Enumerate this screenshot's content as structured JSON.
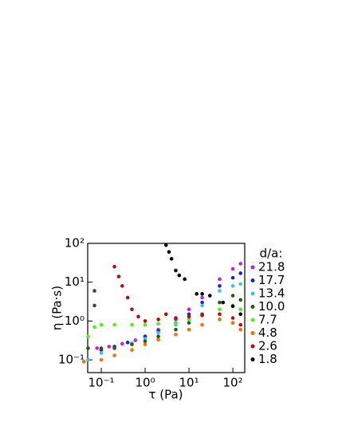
{
  "chart_data": {
    "type": "scatter",
    "x_label": "τ (Pa)",
    "y_label": "η (Pa·s)",
    "xscale": "log",
    "yscale": "log",
    "grid": false,
    "xlim": [
      0.049,
      187
    ],
    "ylim": [
      0.047,
      100
    ],
    "xticks": [
      {
        "value": 0.1,
        "label": "10⁻¹"
      },
      {
        "value": 1,
        "label": "10⁰"
      },
      {
        "value": 10,
        "label": "10¹"
      },
      {
        "value": 100,
        "label": "10²"
      }
    ],
    "yticks": [
      {
        "value": 0.1,
        "label": "10⁻¹"
      },
      {
        "value": 1,
        "label": "10⁰"
      },
      {
        "value": 10,
        "label": "10¹"
      },
      {
        "value": 100,
        "label": "10²"
      }
    ],
    "legend_title": "d/a:",
    "legend_position": "right",
    "series": [
      {
        "name": "21.8",
        "color": "#c020e0",
        "x": [
          0.05,
          0.08,
          0.15,
          0.3,
          0.6,
          1,
          2,
          5,
          10,
          20,
          50,
          100,
          150
        ],
        "values": [
          0.2,
          0.2,
          0.22,
          0.26,
          0.32,
          0.4,
          0.6,
          1.1,
          2,
          4,
          12,
          22,
          30
        ]
      },
      {
        "name": "17.7",
        "color": "#2020c0",
        "x": [
          0.05,
          0.1,
          0.2,
          0.4,
          1,
          2,
          5,
          10,
          20,
          50,
          100,
          150
        ],
        "values": [
          0.1,
          0.18,
          0.22,
          0.28,
          0.4,
          0.55,
          0.9,
          1.5,
          3,
          8,
          13,
          17
        ]
      },
      {
        "name": "13.4",
        "color": "#40c0f0",
        "x": [
          0.05,
          0.1,
          0.2,
          0.5,
          1,
          2,
          5,
          10,
          20,
          50,
          100,
          150
        ],
        "values": [
          0.1,
          0.15,
          0.2,
          0.27,
          0.35,
          0.5,
          0.8,
          1.3,
          2.5,
          6,
          8,
          9
        ]
      },
      {
        "name": "10.0",
        "color": "#2a5a10",
        "x": [
          0.05,
          0.07,
          0.07,
          0.1,
          0.2,
          0.5,
          1,
          2,
          5,
          10,
          20,
          50,
          100,
          150
        ],
        "values": [
          0.2,
          6,
          2.5,
          0.2,
          0.2,
          0.25,
          0.3,
          0.4,
          0.6,
          0.9,
          1.5,
          3,
          4.5,
          3.5
        ]
      },
      {
        "name": "7.7",
        "color": "#50ee20",
        "x": [
          0.05,
          0.07,
          0.1,
          0.2,
          0.5,
          1,
          2,
          5,
          10,
          20,
          50,
          100,
          150
        ],
        "values": [
          0.4,
          0.7,
          0.8,
          0.8,
          0.8,
          0.8,
          0.85,
          0.9,
          1.1,
          1.4,
          2,
          2.5,
          2
        ]
      },
      {
        "name": "4.8",
        "color": "#f07010",
        "x": [
          0.04,
          0.1,
          0.2,
          0.5,
          1,
          2,
          5,
          10,
          20,
          50,
          100,
          150
        ],
        "values": [
          0.09,
          0.1,
          0.13,
          0.18,
          0.25,
          0.33,
          0.45,
          0.6,
          0.8,
          1.1,
          0.9,
          0.6
        ]
      },
      {
        "name": "2.6",
        "color": "#b01010",
        "x": [
          0.2,
          0.25,
          0.3,
          0.4,
          0.5,
          0.7,
          1,
          2,
          3,
          5,
          10,
          20,
          50,
          100,
          150
        ],
        "values": [
          25,
          14,
          8,
          4,
          2,
          1.3,
          1,
          1.1,
          1.5,
          1.2,
          1.3,
          1.4,
          1.5,
          1.2,
          0.8
        ]
      },
      {
        "name": "1.8",
        "color": "#000000",
        "x": [
          3,
          3.5,
          4,
          5,
          6,
          8,
          15,
          20,
          30,
          60,
          100,
          150
        ],
        "values": [
          90,
          60,
          40,
          20,
          15,
          12,
          5,
          5,
          4.5,
          3,
          2.4,
          1.5
        ]
      }
    ]
  }
}
